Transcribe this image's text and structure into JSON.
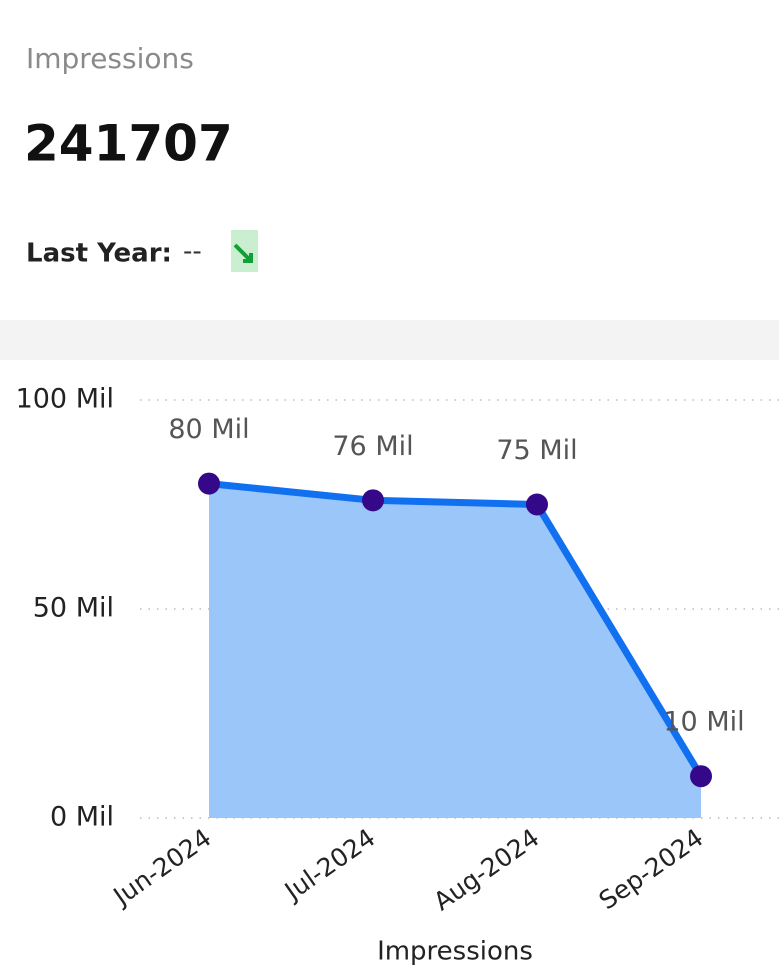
{
  "header": {
    "label": "Impressions",
    "value": 241707,
    "comparison_label": "Last Year:",
    "comparison_value": "--"
  },
  "chart_data": {
    "type": "area",
    "x_label": "Impressions",
    "categories": [
      "Jun-2024",
      "Jul-2024",
      "Aug-2024",
      "Sep-2024"
    ],
    "values": [
      80000000,
      76000000,
      75000000,
      10000000
    ],
    "value_labels": [
      "80 Mil",
      "76 Mil",
      "75 Mil",
      "10 Mil"
    ],
    "color": "#1170f0",
    "area_color": "#9ac6fa",
    "marker_color": "#35088a",
    "ylim": [
      0,
      100000000
    ],
    "yticks": [
      {
        "value": 0,
        "label": "0 Mil"
      },
      {
        "value": 50000000,
        "label": "50 Mil"
      },
      {
        "value": 100000000,
        "label": "100 Mil"
      }
    ],
    "grid": true
  }
}
